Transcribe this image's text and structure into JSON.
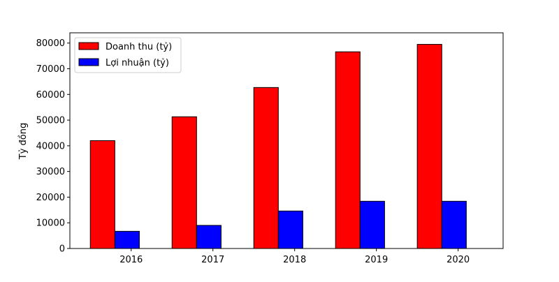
{
  "chart_data": {
    "type": "bar",
    "categories": [
      "2016",
      "2017",
      "2018",
      "2019",
      "2020"
    ],
    "series": [
      {
        "name": "Doanh thu (tỷ)",
        "values": [
          42000,
          51300,
          62700,
          76600,
          79500
        ],
        "color": "#ff0000"
      },
      {
        "name": "Lợi nhuận (tỷ)",
        "values": [
          6700,
          9000,
          14600,
          18400,
          18400
        ],
        "color": "#0000ff"
      }
    ],
    "ylabel": "Tỷ đồng",
    "ylim": [
      0,
      84000
    ],
    "yticks": [
      0,
      10000,
      20000,
      30000,
      40000,
      50000,
      60000,
      70000,
      80000
    ],
    "grid": false,
    "legend": "top-left"
  }
}
